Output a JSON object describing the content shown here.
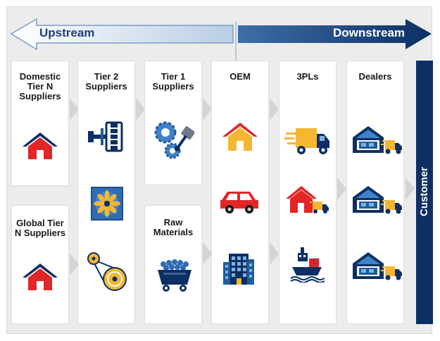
{
  "arrows": {
    "upstream": "Upstream",
    "downstream": "Downstream"
  },
  "columns": {
    "domestic": {
      "title": "Domestic Tier N Suppliers"
    },
    "global": {
      "title": "Global Tier N Suppliers"
    },
    "tier2": {
      "title": "Tier 2 Suppliers"
    },
    "tier1": {
      "title": "Tier 1 Suppliers"
    },
    "raw": {
      "title": "Raw Materials"
    },
    "oem": {
      "title": "OEM"
    },
    "pl3": {
      "title": "3PLs"
    },
    "dealers": {
      "title": "Dealers"
    }
  },
  "customer": "Customer",
  "colors": {
    "navy": "#0d2f63",
    "red": "#e22526",
    "yellow": "#f5b731",
    "blue": "#1f5c99",
    "gray": "#d4d4d4"
  }
}
